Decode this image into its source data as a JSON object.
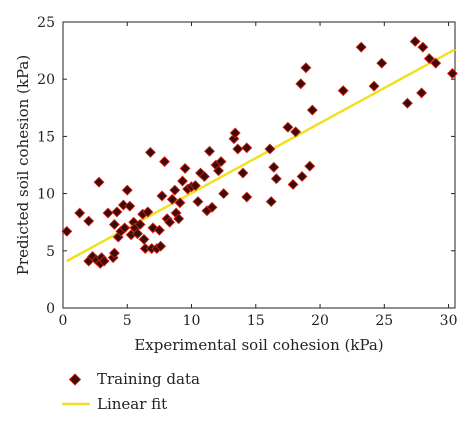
{
  "chart_data": {
    "type": "scatter",
    "title": "",
    "xlabel": "Experimental soil cohesion (kPa)",
    "ylabel": "Predicted soil cohesion (kPa)",
    "xlim": [
      0,
      30.5
    ],
    "ylim": [
      0,
      25
    ],
    "xticks": [
      0,
      5,
      10,
      15,
      20,
      25,
      30
    ],
    "yticks": [
      0,
      5,
      10,
      15,
      20,
      25
    ],
    "grid": false,
    "legend_position": "bottom-left, below plot",
    "series": [
      {
        "name": "Training data",
        "marker": "diamond",
        "color": "#3a0d08",
        "edge_color": "#d41a10",
        "points": [
          [
            0.3,
            6.7
          ],
          [
            1.3,
            8.3
          ],
          [
            2.0,
            7.6
          ],
          [
            2.0,
            4.1
          ],
          [
            2.3,
            4.5
          ],
          [
            2.6,
            4.2
          ],
          [
            2.8,
            11.0
          ],
          [
            2.9,
            3.9
          ],
          [
            3.0,
            4.4
          ],
          [
            3.2,
            4.1
          ],
          [
            3.5,
            8.3
          ],
          [
            3.9,
            4.4
          ],
          [
            4.0,
            4.8
          ],
          [
            4.0,
            7.3
          ],
          [
            4.2,
            8.4
          ],
          [
            4.3,
            6.2
          ],
          [
            4.5,
            6.7
          ],
          [
            4.7,
            9.0
          ],
          [
            4.8,
            7.0
          ],
          [
            5.0,
            10.3
          ],
          [
            5.2,
            8.9
          ],
          [
            5.3,
            6.4
          ],
          [
            5.5,
            7.5
          ],
          [
            5.6,
            7.0
          ],
          [
            5.8,
            6.5
          ],
          [
            6.0,
            7.3
          ],
          [
            6.2,
            8.2
          ],
          [
            6.3,
            6.0
          ],
          [
            6.4,
            5.2
          ],
          [
            6.6,
            8.4
          ],
          [
            6.8,
            13.6
          ],
          [
            6.9,
            5.2
          ],
          [
            7.0,
            7.0
          ],
          [
            7.3,
            5.2
          ],
          [
            7.5,
            6.8
          ],
          [
            7.6,
            5.4
          ],
          [
            7.7,
            9.8
          ],
          [
            7.9,
            12.8
          ],
          [
            8.1,
            7.8
          ],
          [
            8.3,
            7.5
          ],
          [
            8.5,
            9.5
          ],
          [
            8.7,
            10.3
          ],
          [
            8.8,
            8.3
          ],
          [
            9.0,
            7.8
          ],
          [
            9.1,
            9.2
          ],
          [
            9.3,
            11.1
          ],
          [
            9.5,
            12.2
          ],
          [
            9.7,
            10.4
          ],
          [
            10.0,
            10.6
          ],
          [
            10.3,
            10.7
          ],
          [
            10.5,
            9.3
          ],
          [
            10.7,
            11.8
          ],
          [
            11.0,
            11.5
          ],
          [
            11.2,
            8.5
          ],
          [
            11.4,
            13.7
          ],
          [
            11.6,
            8.8
          ],
          [
            11.9,
            12.5
          ],
          [
            12.1,
            12.0
          ],
          [
            12.3,
            12.8
          ],
          [
            12.5,
            10.0
          ],
          [
            13.3,
            14.8
          ],
          [
            13.4,
            15.3
          ],
          [
            13.6,
            13.9
          ],
          [
            14.0,
            11.8
          ],
          [
            14.3,
            9.7
          ],
          [
            14.3,
            14.0
          ],
          [
            16.1,
            13.9
          ],
          [
            16.2,
            9.3
          ],
          [
            16.4,
            12.3
          ],
          [
            16.6,
            11.3
          ],
          [
            17.5,
            15.8
          ],
          [
            17.9,
            10.8
          ],
          [
            18.1,
            15.4
          ],
          [
            18.5,
            19.6
          ],
          [
            18.6,
            11.5
          ],
          [
            18.9,
            21.0
          ],
          [
            19.2,
            12.4
          ],
          [
            19.4,
            17.3
          ],
          [
            21.8,
            19.0
          ],
          [
            23.2,
            22.8
          ],
          [
            24.2,
            19.4
          ],
          [
            24.8,
            21.4
          ],
          [
            26.8,
            17.9
          ],
          [
            27.4,
            23.3
          ],
          [
            27.9,
            18.8
          ],
          [
            28.0,
            22.8
          ],
          [
            28.5,
            21.8
          ],
          [
            29.0,
            21.4
          ],
          [
            30.3,
            20.5
          ]
        ]
      },
      {
        "name": "Linear fit",
        "kind": "line",
        "color": "#f2e020",
        "points": [
          [
            0.3,
            4.1
          ],
          [
            30.5,
            22.6
          ]
        ]
      }
    ]
  }
}
